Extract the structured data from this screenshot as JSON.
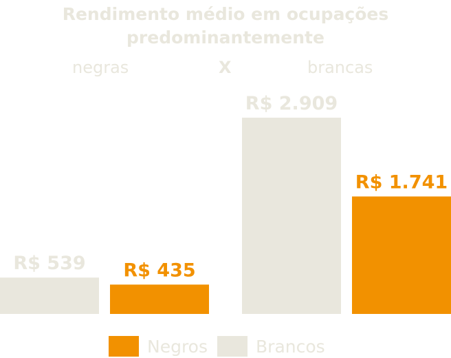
{
  "title_line1": "Rendimento médio em ocupações",
  "title_line2": "predominantemente",
  "subtitle": {
    "left": "negras",
    "middle": "X",
    "right": "brancas"
  },
  "colors": {
    "negros": "#f29100",
    "brancos": "#e9e7dd"
  },
  "chart_data": {
    "type": "bar",
    "categories": [
      "negras",
      "brancas"
    ],
    "series": [
      {
        "name": "Brancos",
        "values": [
          539,
          2909
        ],
        "labels": [
          "R$ 539",
          "R$ 2.909"
        ]
      },
      {
        "name": "Negros",
        "values": [
          435,
          1741
        ],
        "labels": [
          "R$ 435",
          "R$ 1.741"
        ]
      }
    ],
    "ylim": [
      0,
      3000
    ],
    "grid": false,
    "legend": "bottom"
  },
  "legend": [
    {
      "label": "Negros",
      "color": "#f29100"
    },
    {
      "label": "Brancos",
      "color": "#e9e7dd"
    }
  ]
}
